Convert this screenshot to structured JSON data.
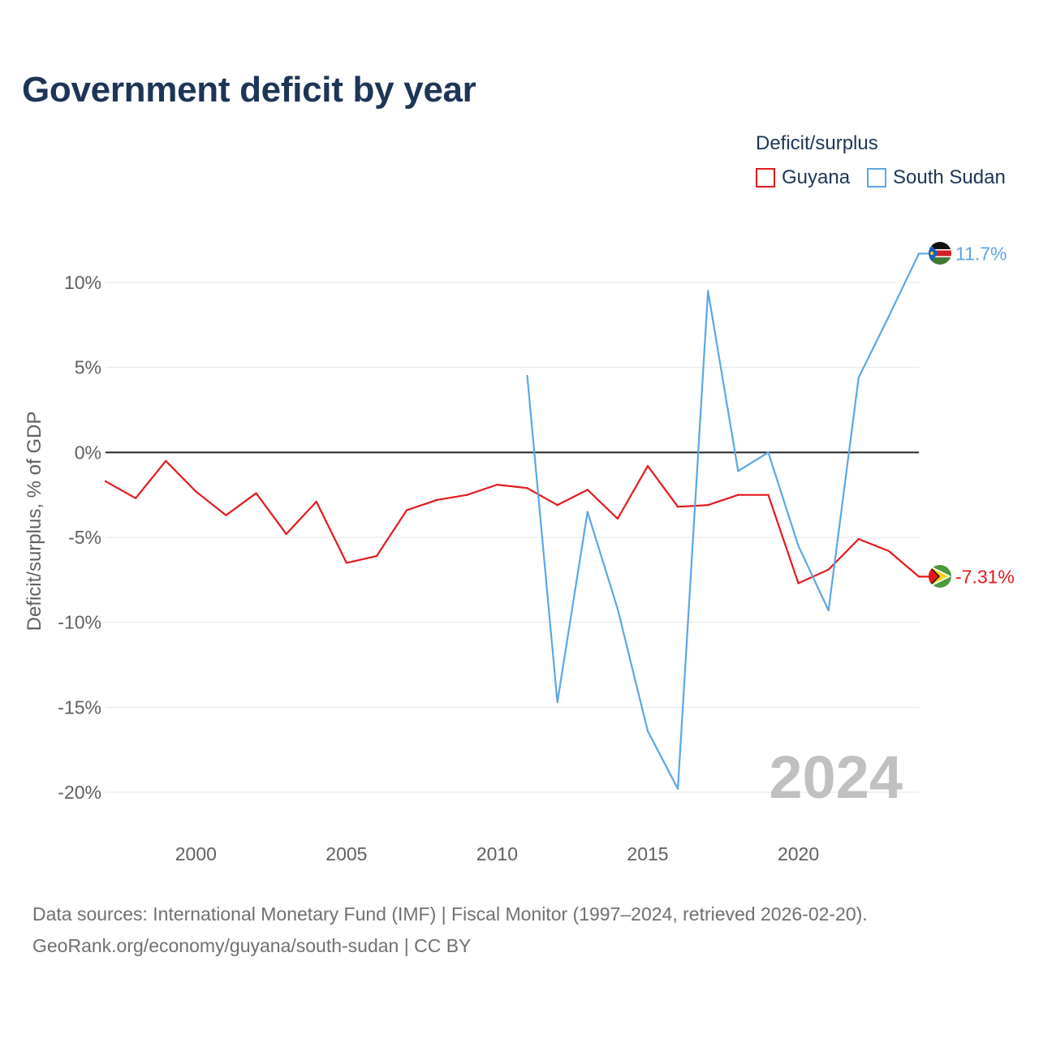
{
  "chart_data": {
    "type": "line",
    "title": "Government deficit by year",
    "xlabel": "",
    "ylabel": "Deficit/surplus, % of GDP",
    "xlim": [
      1997,
      2024
    ],
    "ylim": [
      -20,
      10
    ],
    "y_ticks": [
      10,
      5,
      0,
      -5,
      -10,
      -15,
      -20
    ],
    "y_tick_labels": [
      "10%",
      "5%",
      "0%",
      "-5%",
      "-10%",
      "-15%",
      "-20%"
    ],
    "x_ticks": [
      2000,
      2005,
      2010,
      2015,
      2020
    ],
    "x_tick_labels": [
      "2000",
      "2005",
      "2010",
      "2015",
      "2020"
    ],
    "legend_title": "Deficit/surplus",
    "year_watermark": "2024",
    "series": [
      {
        "name": "Guyana",
        "color": "#e31a1c",
        "end_label": "-7.31%",
        "flag_icon": "guyana-flag-icon",
        "x": [
          1997,
          1998,
          1999,
          2000,
          2001,
          2002,
          2003,
          2004,
          2005,
          2006,
          2007,
          2008,
          2009,
          2010,
          2011,
          2012,
          2013,
          2014,
          2015,
          2016,
          2017,
          2018,
          2019,
          2020,
          2021,
          2022,
          2023,
          2024
        ],
        "values": [
          -1.7,
          -2.7,
          -0.5,
          -2.3,
          -3.7,
          -2.4,
          -4.8,
          -2.9,
          -6.5,
          -6.1,
          -3.4,
          -2.8,
          -2.5,
          -1.9,
          -2.1,
          -3.1,
          -2.2,
          -3.9,
          -0.8,
          -3.2,
          -3.1,
          -2.5,
          -2.5,
          -7.7,
          -6.9,
          -5.1,
          -5.8,
          -7.31
        ]
      },
      {
        "name": "South Sudan",
        "color": "#5aa7e6",
        "end_label": "11.7%",
        "flag_icon": "south-sudan-flag-icon",
        "x": [
          2011,
          2012,
          2013,
          2014,
          2015,
          2016,
          2017,
          2018,
          2019,
          2020,
          2021,
          2022,
          2023,
          2024
        ],
        "values": [
          4.5,
          -14.7,
          -3.5,
          -9.2,
          -16.4,
          -19.8,
          9.5,
          -1.1,
          0.0,
          -5.5,
          -9.3,
          4.4,
          8.0,
          11.7
        ]
      }
    ]
  },
  "source": {
    "line1": "Data sources: International Monetary Fund (IMF) | Fiscal Monitor (1997–2024, retrieved 2026-02-20).",
    "line2": "GeoRank.org/economy/guyana/south-sudan | CC BY"
  }
}
